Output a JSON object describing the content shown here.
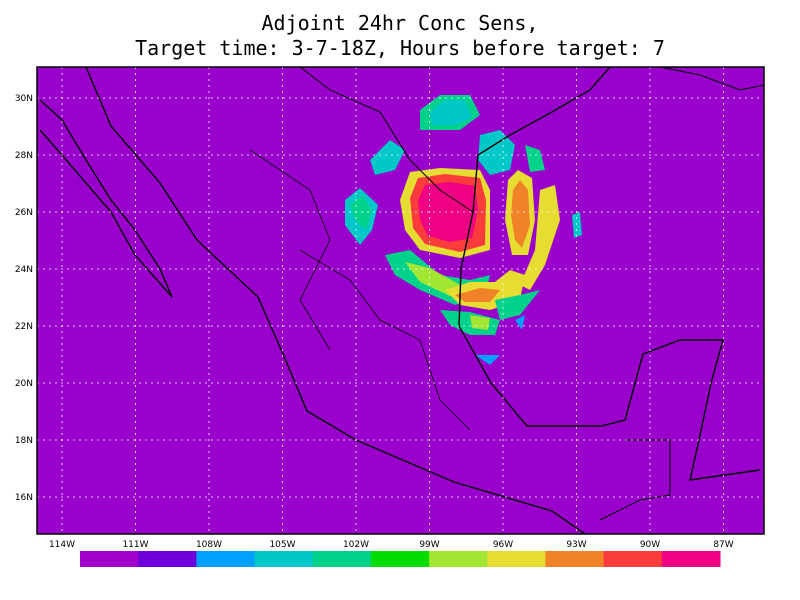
{
  "title": [
    "Adjoint 24hr Conc Sens,",
    "Target time: 3-7-18Z, Hours before target: 7"
  ],
  "lat_labels": [
    "30N",
    "28N",
    "26N",
    "24N",
    "22N",
    "20N",
    "18N",
    "16N"
  ],
  "lon_labels": [
    "114W",
    "111W",
    "108W",
    "105W",
    "102W",
    "99W",
    "96W",
    "93W",
    "90W",
    "87W"
  ],
  "colorbar": [
    "#a000c8",
    "#6e00dc",
    "#00a0ff",
    "#00c8c8",
    "#00d28c",
    "#00dc00",
    "#a0e632",
    "#e6dc32",
    "#f08228",
    "#fa3c3c",
    "#f00082"
  ]
}
